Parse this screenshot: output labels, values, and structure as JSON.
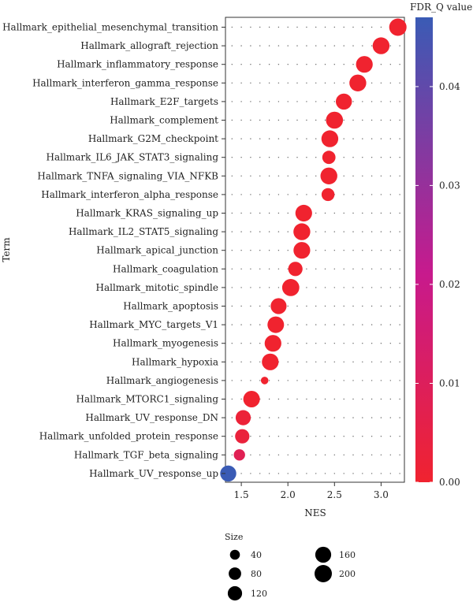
{
  "chart_data": {
    "type": "scatter",
    "xlabel": "NES",
    "ylabel": "Term",
    "xlim": [
      1.33,
      3.25
    ],
    "xticks": [
      1.5,
      2.0,
      2.5,
      3.0
    ],
    "xtick_labels": [
      "1.5",
      "2.0",
      "2.5",
      "3.0"
    ],
    "categories": [
      "Hallmark_epithelial_mesenchymal_transition",
      "Hallmark_allograft_rejection",
      "Hallmark_inflammatory_response",
      "Hallmark_interferon_gamma_response",
      "Hallmark_E2F_targets",
      "Hallmark_complement",
      "Hallmark_G2M_checkpoint",
      "Hallmark_IL6_JAK_STAT3_signaling",
      "Hallmark_TNFA_signaling_VIA_NFKB",
      "Hallmark_interferon_alpha_response",
      "Hallmark_KRAS_signaling_up",
      "Hallmark_IL2_STAT5_signaling",
      "Hallmark_apical_junction",
      "Hallmark_coagulation",
      "Hallmark_mitotic_spindle",
      "Hallmark_apoptosis",
      "Hallmark_MYC_targets_V1",
      "Hallmark_myogenesis",
      "Hallmark_hypoxia",
      "Hallmark_angiogenesis",
      "Hallmark_MTORC1_signaling",
      "Hallmark_UV_response_DN",
      "Hallmark_unfolded_protein_response",
      "Hallmark_TGF_beta_signaling",
      "Hallmark_UV_response_up"
    ],
    "nes": [
      3.18,
      3.0,
      2.82,
      2.75,
      2.6,
      2.5,
      2.45,
      2.44,
      2.44,
      2.43,
      2.17,
      2.15,
      2.15,
      2.08,
      2.03,
      1.9,
      1.87,
      1.84,
      1.81,
      1.75,
      1.61,
      1.52,
      1.51,
      1.48,
      1.36
    ],
    "size": [
      200,
      185,
      180,
      185,
      165,
      190,
      185,
      95,
      185,
      90,
      180,
      185,
      180,
      120,
      195,
      160,
      175,
      180,
      180,
      15,
      175,
      140,
      120,
      60,
      165
    ],
    "fdr_q": [
      0.0,
      0.0,
      0.0,
      0.0,
      0.0,
      0.0,
      0.0,
      0.0,
      0.0,
      0.0,
      0.0,
      0.0,
      0.0,
      0.0,
      0.0,
      0.0,
      0.0,
      0.0,
      0.0,
      0.0,
      0.0,
      0.002,
      0.003,
      0.008,
      0.047
    ],
    "colorbar": {
      "title": "FDR_Q value",
      "min": 0.0,
      "max": 0.047,
      "ticks": [
        0.0,
        0.01,
        0.02,
        0.03,
        0.04
      ],
      "tick_labels": [
        "0.00",
        "0.01",
        "0.02",
        "0.03",
        "0.04"
      ],
      "color_low": "#f0232f",
      "color_mid": "#c71a8d",
      "color_high": "#3a5bb5"
    },
    "size_legend": {
      "title": "Size",
      "values": [
        40,
        80,
        120,
        160,
        200
      ],
      "labels": [
        "40",
        "80",
        "120",
        "160",
        "200"
      ]
    },
    "grid": "dotted"
  }
}
